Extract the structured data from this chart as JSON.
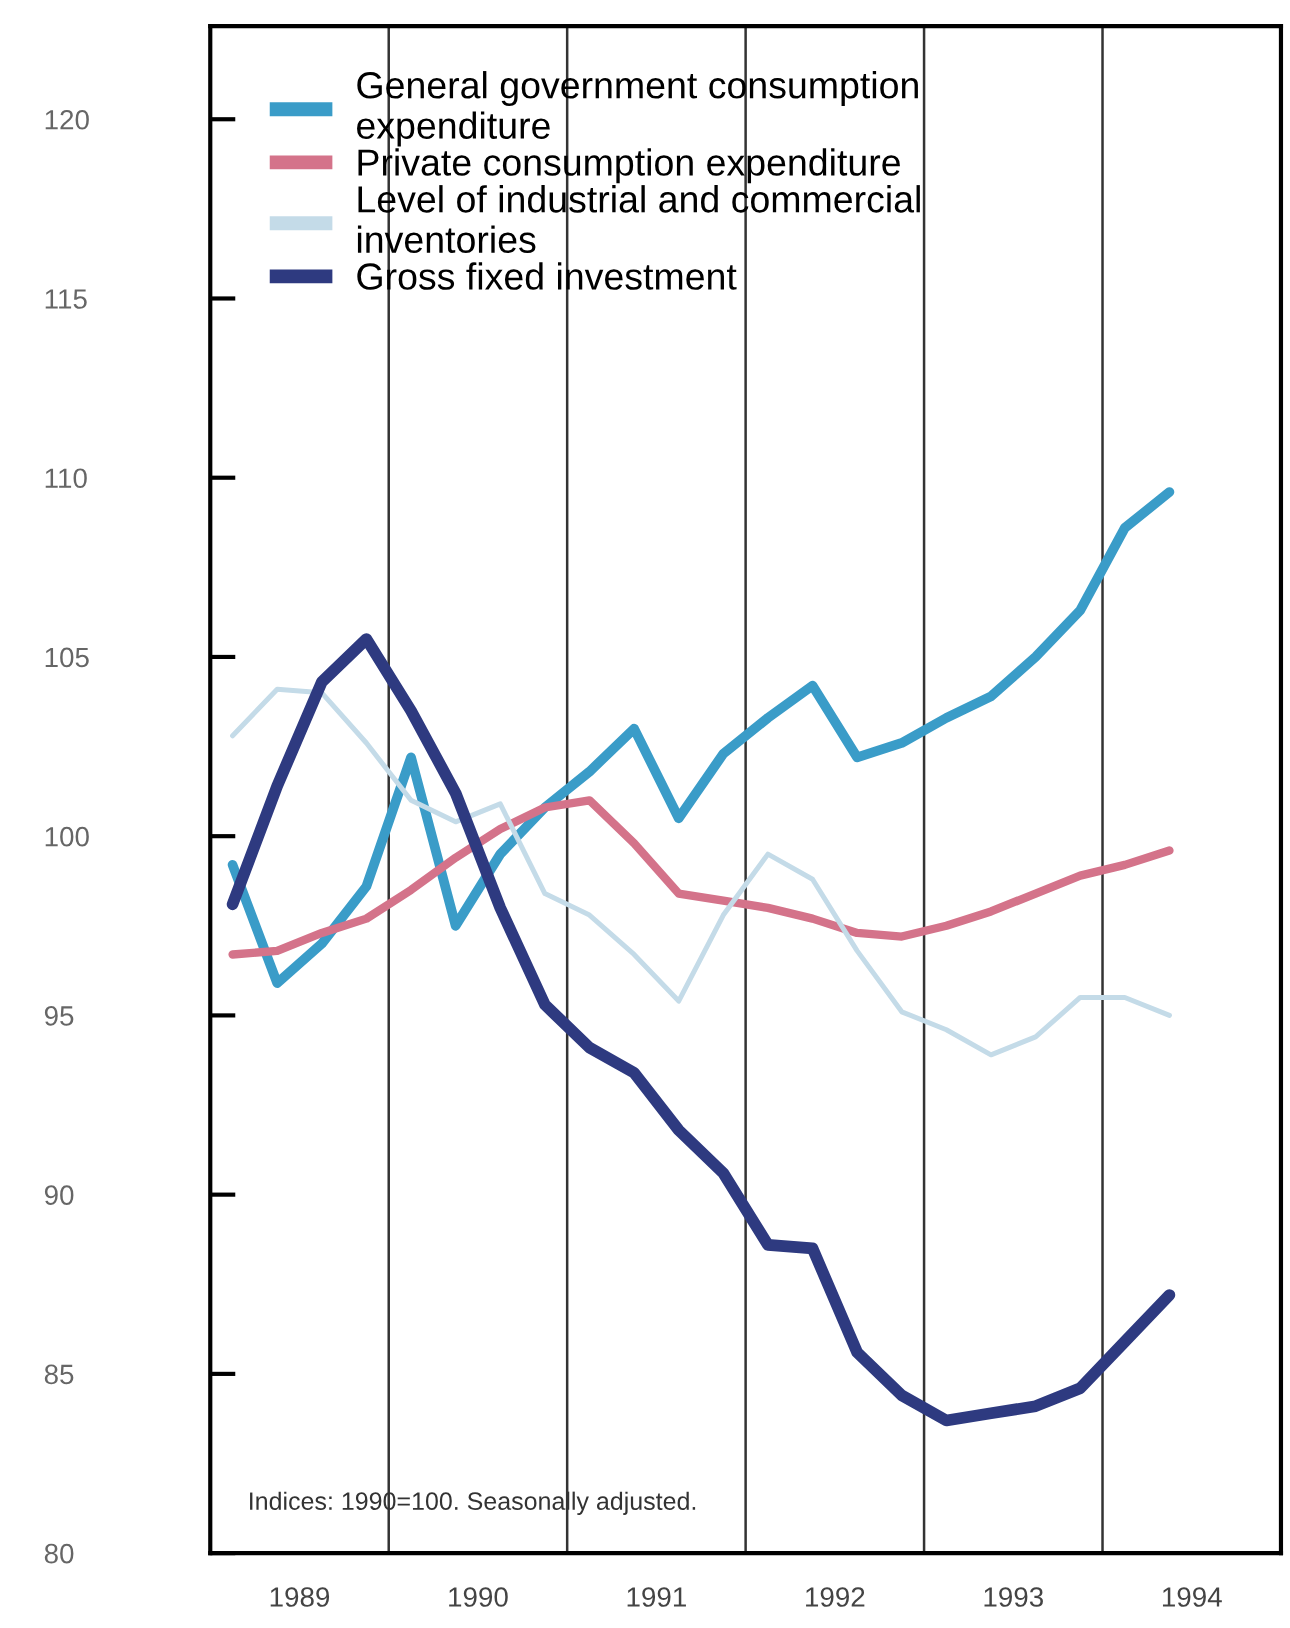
{
  "chart_data": {
    "type": "line",
    "x": [
      1989.125,
      1989.375,
      1989.625,
      1989.875,
      1990.125,
      1990.375,
      1990.625,
      1990.875,
      1991.125,
      1991.375,
      1991.625,
      1991.875,
      1992.125,
      1992.375,
      1992.625,
      1992.875,
      1993.125,
      1993.375,
      1993.625,
      1993.875,
      1994.125,
      1994.375
    ],
    "series": [
      {
        "name": "General government consumption\nexpenditure",
        "color": "#3a9cc8",
        "values": [
          99.2,
          95.9,
          97.0,
          98.6,
          102.2,
          97.5,
          99.5,
          100.8,
          101.8,
          103.0,
          100.5,
          102.3,
          103.3,
          104.2,
          102.2,
          102.6,
          103.3,
          103.9,
          105.0,
          106.3,
          108.6,
          109.6
        ]
      },
      {
        "name": "Private consumption expenditure",
        "color": "#d4738a",
        "values": [
          96.7,
          96.8,
          97.3,
          97.7,
          98.5,
          99.4,
          100.2,
          100.8,
          101.0,
          99.8,
          98.4,
          98.2,
          98.0,
          97.7,
          97.3,
          97.2,
          97.5,
          97.9,
          98.4,
          98.9,
          99.2,
          99.6
        ]
      },
      {
        "name": "Level of industrial and commercial\ninventories",
        "color": "#c4dbe8",
        "values": [
          102.8,
          104.1,
          104.0,
          102.6,
          101.0,
          100.4,
          100.9,
          98.4,
          97.8,
          96.7,
          95.4,
          97.8,
          99.5,
          98.8,
          96.8,
          95.1,
          94.6,
          93.9,
          94.4,
          95.5,
          95.5,
          95.0
        ]
      },
      {
        "name": "Gross fixed investment",
        "color": "#2e3a80",
        "values": [
          98.1,
          101.4,
          104.3,
          105.5,
          103.5,
          101.2,
          98.0,
          95.3,
          94.1,
          93.4,
          91.8,
          90.6,
          88.6,
          88.5,
          85.6,
          84.4,
          83.7,
          83.9,
          84.1,
          84.6,
          85.9,
          87.2
        ]
      }
    ],
    "xlim": [
      1989,
      1995
    ],
    "xticks": [
      {
        "value": 1989.5,
        "label": "1989"
      },
      {
        "value": 1990.5,
        "label": "1990"
      },
      {
        "value": 1991.5,
        "label": "1991"
      },
      {
        "value": 1992.5,
        "label": "1992"
      },
      {
        "value": 1993.5,
        "label": "1993"
      },
      {
        "value": 1994.5,
        "label": "1994"
      }
    ],
    "ylim": [
      80,
      122.6
    ],
    "yticks": [
      80,
      85,
      90,
      95,
      100,
      105,
      110,
      115,
      120
    ],
    "ref_lines": [
      {
        "axis": "x",
        "value": 1990,
        "color": "#333333"
      },
      {
        "axis": "x",
        "value": 1991,
        "color": "#333333"
      },
      {
        "axis": "x",
        "value": 1992,
        "color": "#333333"
      },
      {
        "axis": "x",
        "value": 1993,
        "color": "#333333"
      },
      {
        "axis": "x",
        "value": 1994,
        "color": "#333333"
      }
    ],
    "annotations": [
      "Indices: 1990=100. Seasonally adjusted."
    ],
    "legend": "top left",
    "grid": false,
    "line_style": "solid",
    "marker": "none"
  }
}
